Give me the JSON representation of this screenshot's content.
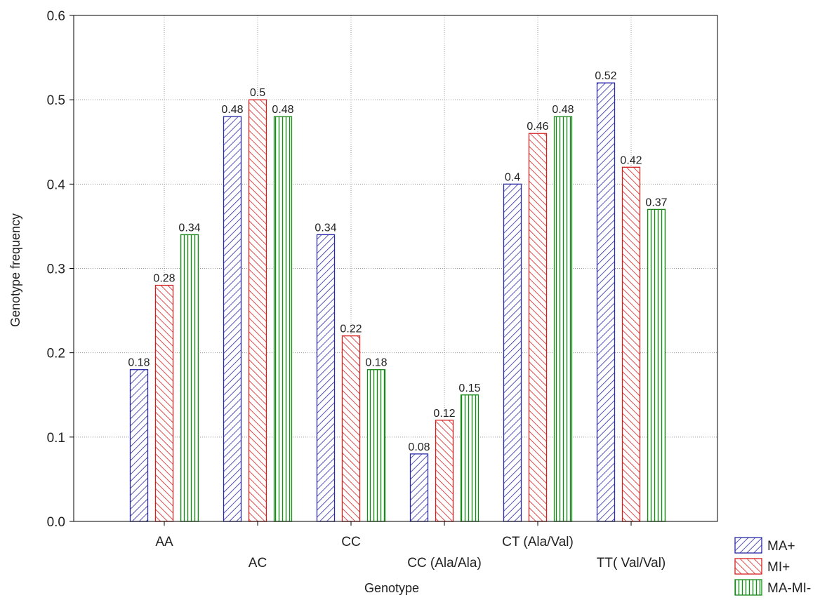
{
  "chart_data": {
    "type": "bar",
    "categories": [
      "AA",
      "AC",
      "CC",
      "CC (Ala/Ala)",
      "CT (Ala/Val)",
      "TT( Val/Val)"
    ],
    "series": [
      {
        "name": "MA+",
        "values": [
          0.18,
          0.48,
          0.34,
          0.08,
          0.4,
          0.52
        ],
        "labels": [
          "0.18",
          "0.48",
          "0.34",
          "0.08",
          "0.4",
          "0.52"
        ],
        "color": "#2a2aa8",
        "pattern": "diagonal-up"
      },
      {
        "name": "MI+",
        "values": [
          0.28,
          0.5,
          0.22,
          0.12,
          0.46,
          0.42
        ],
        "labels": [
          "0.28",
          "0.5",
          "0.22",
          "0.12",
          "0.46",
          "0.42"
        ],
        "color": "#d62020",
        "pattern": "diagonal-down"
      },
      {
        "name": "MA-MI-",
        "values": [
          0.34,
          0.48,
          0.18,
          0.15,
          0.48,
          0.37
        ],
        "labels": [
          "0.34",
          "0.48",
          "0.18",
          "0.15",
          "0.48",
          "0.37"
        ],
        "color": "#1a8a1a",
        "pattern": "vertical"
      }
    ],
    "title": "",
    "xlabel": "Genotype",
    "ylabel": "Genotype frequency",
    "ylim": [
      0,
      0.6
    ],
    "yticks": [
      "0.0",
      "0.1",
      "0.2",
      "0.3",
      "0.4",
      "0.5",
      "0.6"
    ],
    "grid": true,
    "legend_position": "bottom-right"
  }
}
